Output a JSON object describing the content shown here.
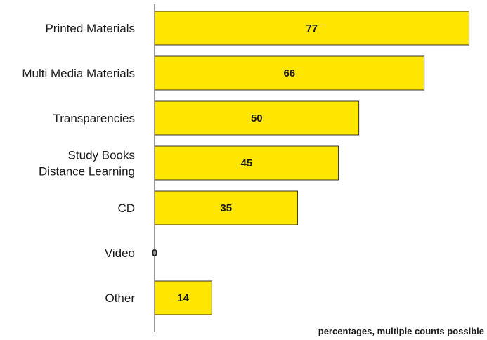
{
  "chart_data": {
    "type": "bar",
    "orientation": "horizontal",
    "categories": [
      [
        "Printed Materials"
      ],
      [
        "Multi Media Materials"
      ],
      [
        "Transparencies"
      ],
      [
        "Study Books",
        "Distance Learning"
      ],
      [
        "CD"
      ],
      [
        "Video"
      ],
      [
        "Other"
      ]
    ],
    "values": [
      77,
      66,
      50,
      45,
      35,
      0,
      14
    ],
    "data_labels": [
      "77",
      "66",
      "50",
      "45",
      "35",
      "0",
      "14"
    ],
    "xlim": [
      0,
      80
    ],
    "grid": false,
    "legend": "none",
    "annotation": "percentages, multiple counts possible",
    "colors": {
      "bar_fill": "#ffe600",
      "bar_stroke": "#333333",
      "axis": "#333333",
      "text": "#1a1a1a"
    }
  }
}
